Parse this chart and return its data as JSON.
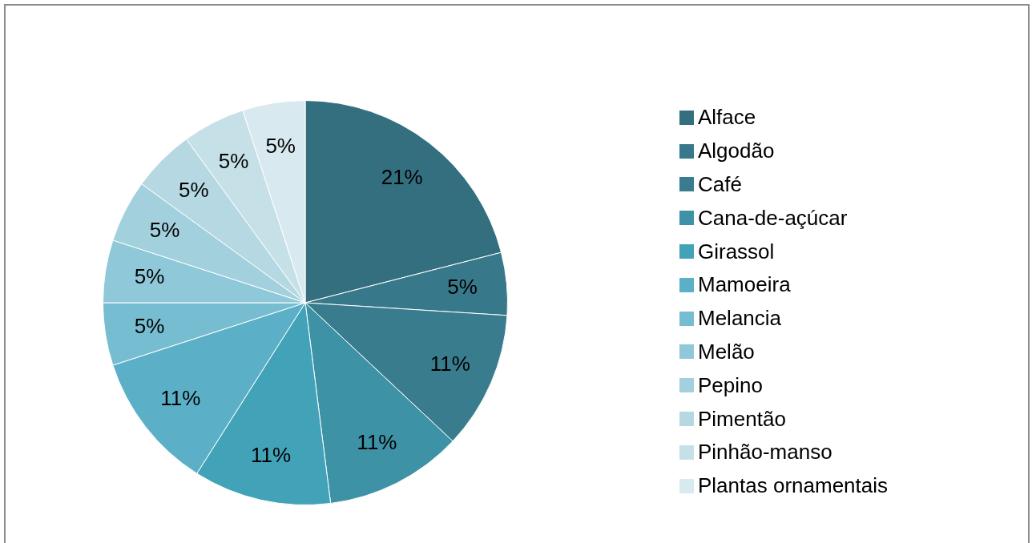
{
  "chart_data": {
    "type": "pie",
    "categories": [
      "Alface",
      "Algodão",
      "Café",
      "Cana-de-açúcar",
      "Girassol",
      "Mamoeira",
      "Melancia",
      "Melão",
      "Pepino",
      "Pimentão",
      "Pinhão-manso",
      "Plantas ornamentais"
    ],
    "values": [
      21,
      5,
      11,
      11,
      11,
      11,
      5,
      5,
      5,
      5,
      5,
      5
    ],
    "colors": [
      "#346f80",
      "#37788a",
      "#397c8e",
      "#3d92a6",
      "#42a2b8",
      "#5bb0c8",
      "#76bdd1",
      "#8fc8d8",
      "#a3d0dd",
      "#b5d8e2",
      "#c6e0e8",
      "#d8eaef"
    ],
    "value_labels": [
      "21%",
      "5%",
      "11%",
      "11%",
      "11%",
      "11%",
      "5%",
      "5%",
      "5%",
      "5%",
      "5%",
      "5%"
    ],
    "legend": "right"
  }
}
